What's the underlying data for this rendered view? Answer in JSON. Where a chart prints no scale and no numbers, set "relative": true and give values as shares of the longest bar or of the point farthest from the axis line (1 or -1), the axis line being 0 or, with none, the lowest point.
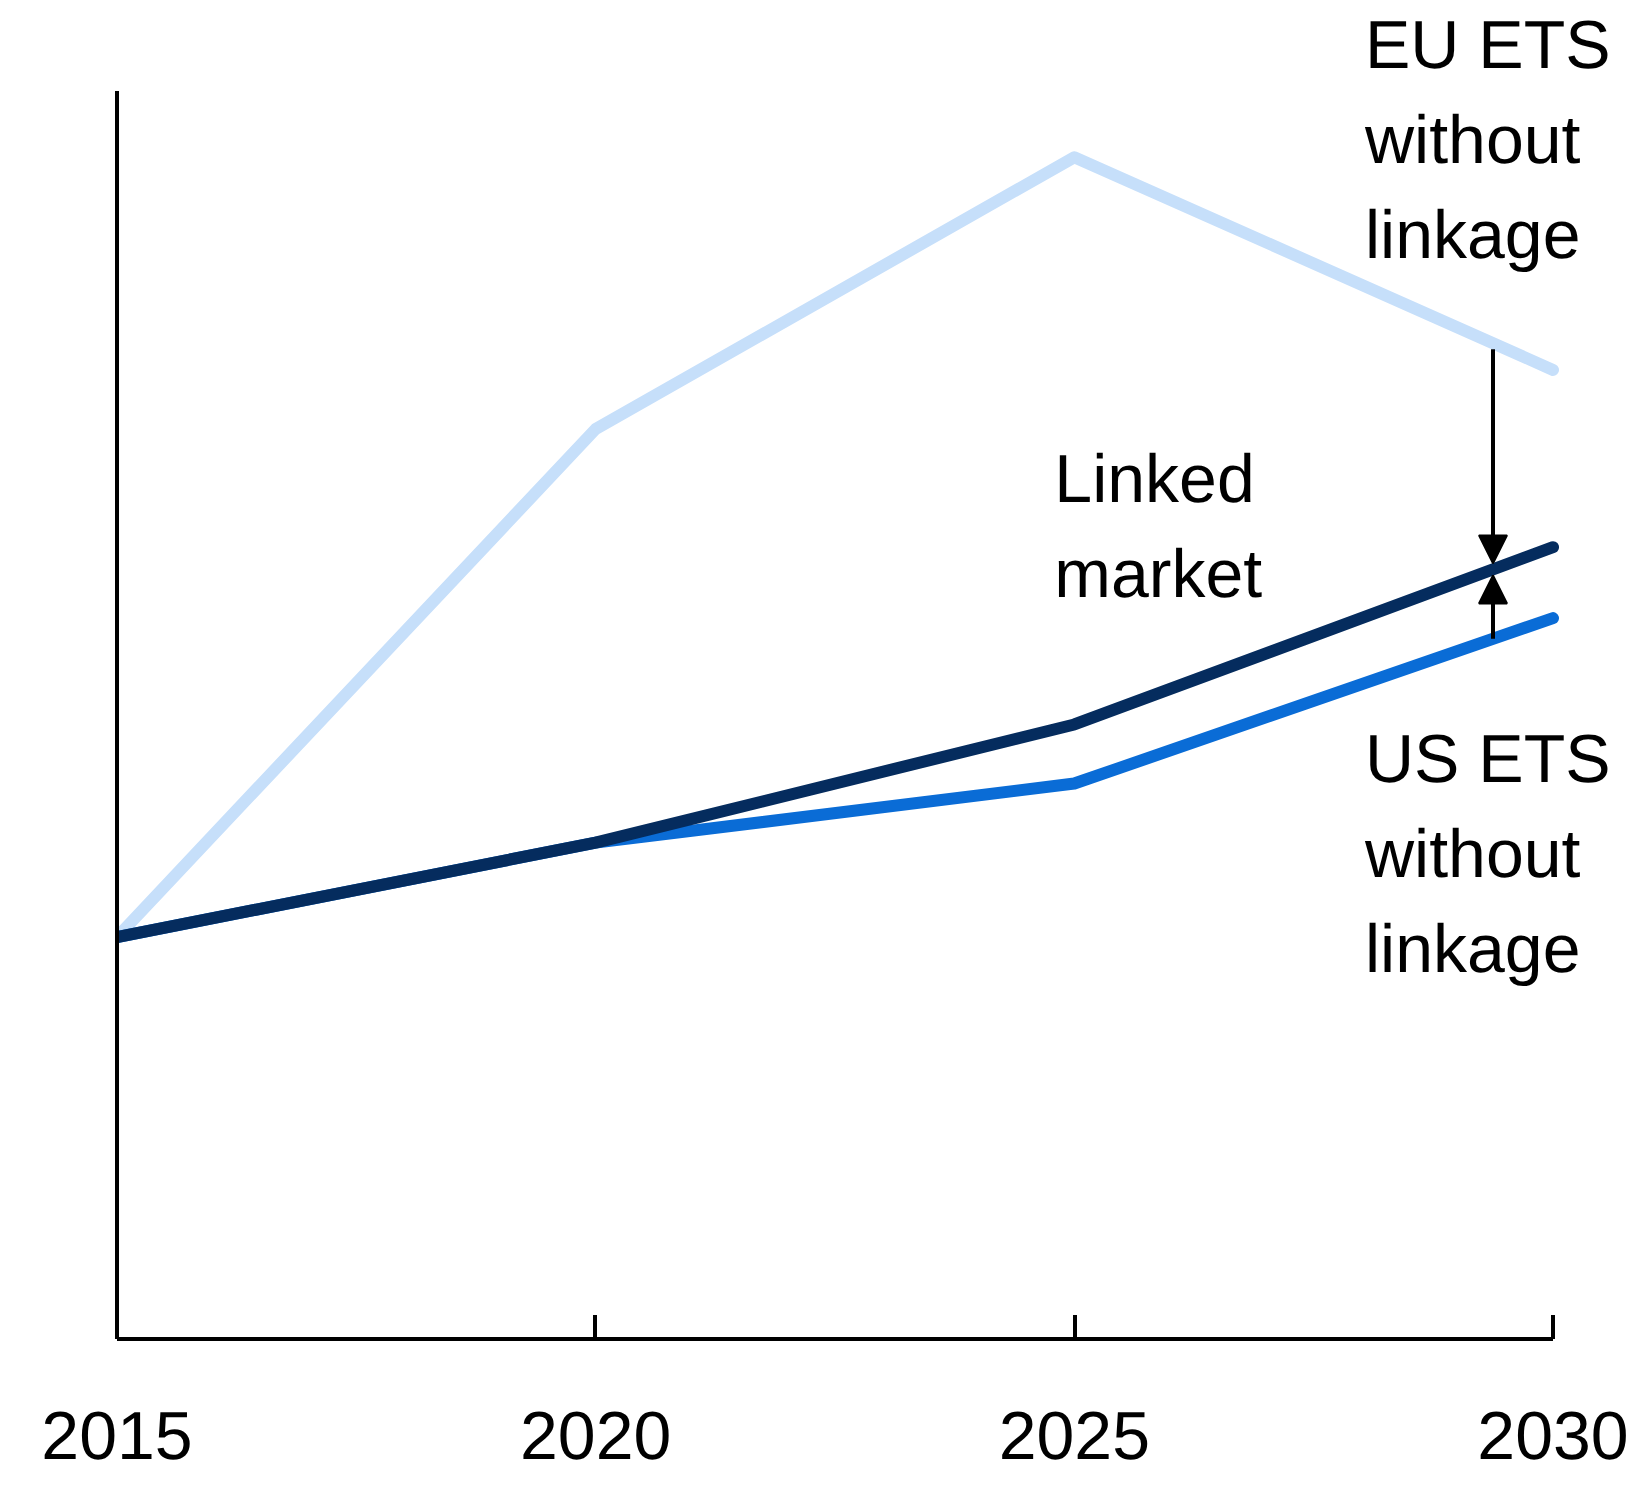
{
  "chart_data": {
    "type": "line",
    "relative": true,
    "x": [
      2015,
      2020,
      2025,
      2030
    ],
    "xlim": [
      2015,
      2030
    ],
    "xticks": [
      2015,
      2020,
      2025,
      2030
    ],
    "tick_labels": "x",
    "series": [
      {
        "name": "EU ETS without linkage",
        "color": "#c6dffa",
        "values": [
          0.34,
          0.77,
          1,
          0.82
        ]
      },
      {
        "name": "US ETS without linkage",
        "color": "#0a6cd6",
        "values": [
          0.34,
          0.42,
          0.47,
          0.61
        ]
      },
      {
        "name": "Linked market",
        "color": "#052c5e",
        "values": [
          0.34,
          0.42,
          0.52,
          0.67
        ]
      }
    ]
  }
}
